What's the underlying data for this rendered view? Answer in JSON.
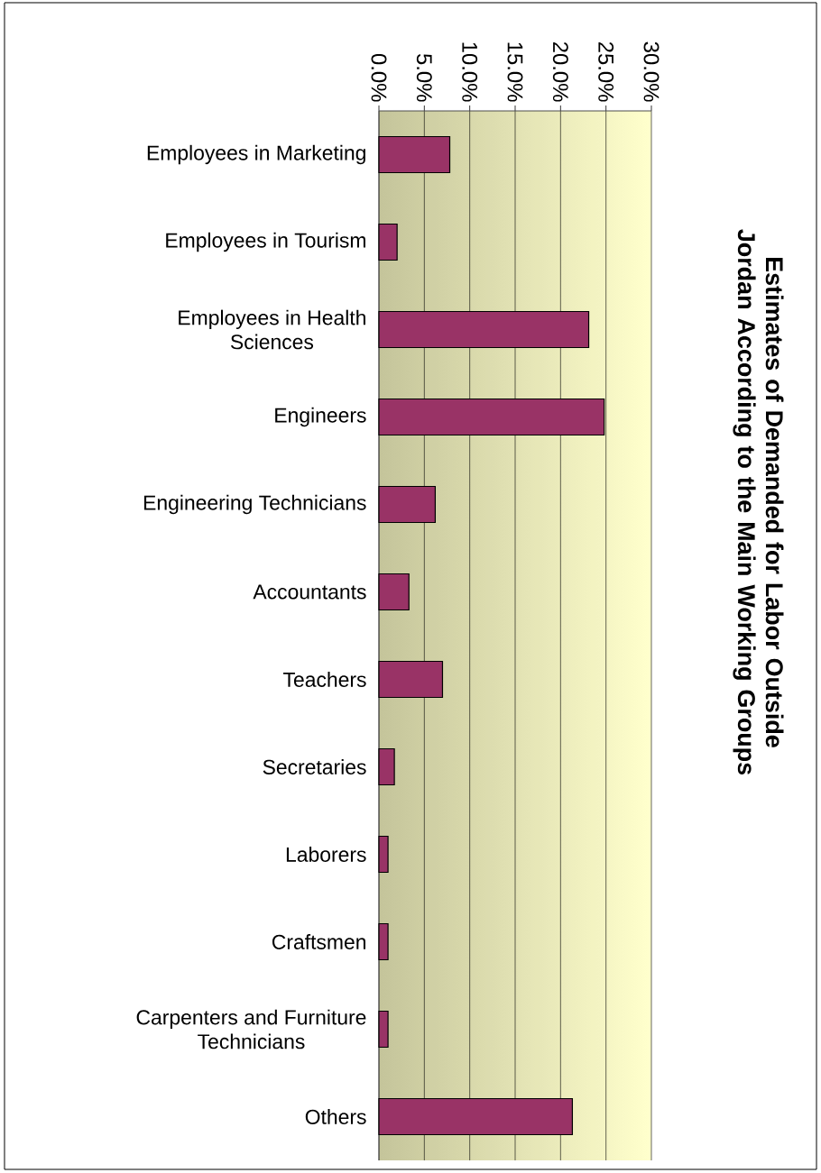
{
  "chart_data": {
    "type": "bar",
    "orientation": "horizontal",
    "title": "Estimates of Demanded for Labor Outside Jordan According to the Main Working Groups",
    "categories": [
      "Employees in Marketing",
      "Employees in Tourism",
      "Employees in Health Sciences",
      "Engineers",
      "Engineering Technicians",
      "Accountants",
      "Teachers",
      "Secretaries",
      "Laborers",
      "Craftsmen",
      "Carpenters and Furniture Technicians",
      "Others"
    ],
    "values": [
      7.8,
      2.0,
      23.1,
      24.8,
      6.2,
      3.3,
      7.0,
      1.7,
      1.0,
      1.0,
      1.0,
      21.3
    ],
    "color": "#993366",
    "xlim": [
      0,
      30
    ],
    "xticks": [
      {
        "value": 0,
        "label": "0.0%"
      },
      {
        "value": 5,
        "label": "5.0%"
      },
      {
        "value": 10,
        "label": "10.0%"
      },
      {
        "value": 15,
        "label": "15.0%"
      },
      {
        "value": 20,
        "label": "20.0%"
      },
      {
        "value": 25,
        "label": "25.0%"
      },
      {
        "value": 30,
        "label": "30.0%"
      }
    ],
    "grid": "x"
  }
}
